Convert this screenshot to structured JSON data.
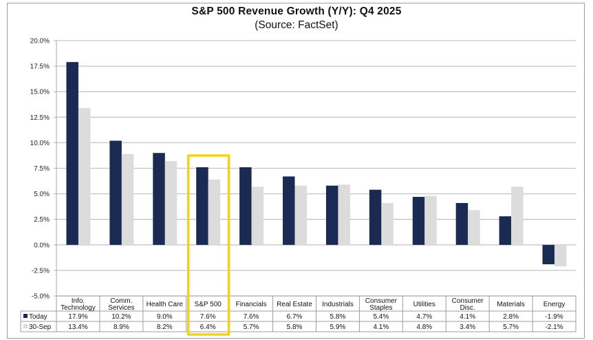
{
  "chart_data": {
    "type": "bar",
    "title": "S&P 500 Revenue Growth (Y/Y):  Q4 2025",
    "subtitle": "(Source: FactSet)",
    "xlabel": "",
    "ylabel": "",
    "ylim": [
      -5.0,
      20.0
    ],
    "yticks": [
      20.0,
      17.5,
      15.0,
      12.5,
      10.0,
      7.5,
      5.0,
      2.5,
      0.0,
      -2.5,
      -5.0
    ],
    "ytick_labels": [
      "20.0%",
      "17.5%",
      "15.0%",
      "12.5%",
      "10.0%",
      "7.5%",
      "5.0%",
      "2.5%",
      "0.0%",
      "-2.5%",
      "-5.0%"
    ],
    "grid": true,
    "categories": [
      [
        "Info.",
        "Technology"
      ],
      [
        "Comm.",
        "Services"
      ],
      [
        "Health Care"
      ],
      [
        "S&P 500"
      ],
      [
        "Financials"
      ],
      [
        "Real Estate"
      ],
      [
        "Industrials"
      ],
      [
        "Consumer",
        "Staples"
      ],
      [
        "Utilities"
      ],
      [
        "Consumer",
        "Disc."
      ],
      [
        "Materials"
      ],
      [
        "Energy"
      ]
    ],
    "series": [
      {
        "name": "Today",
        "color": "#1b2a52",
        "values": [
          17.9,
          10.2,
          9.0,
          7.6,
          7.6,
          6.7,
          5.8,
          5.4,
          4.7,
          4.1,
          2.8,
          -1.9
        ],
        "labels": [
          "17.9%",
          "10.2%",
          "9.0%",
          "7.6%",
          "7.6%",
          "6.7%",
          "5.8%",
          "5.4%",
          "4.7%",
          "4.1%",
          "2.8%",
          "-1.9%"
        ]
      },
      {
        "name": "30-Sep",
        "color": "#dcdcdc",
        "values": [
          13.4,
          8.9,
          8.2,
          6.4,
          5.7,
          5.8,
          5.9,
          4.1,
          4.8,
          3.4,
          5.7,
          -2.1
        ],
        "labels": [
          "13.4%",
          "8.9%",
          "8.2%",
          "6.4%",
          "5.7%",
          "5.8%",
          "5.9%",
          "4.1%",
          "4.8%",
          "3.4%",
          "5.7%",
          "-2.1%"
        ]
      }
    ],
    "legend": "data-table-left",
    "highlight": {
      "category_index": 3,
      "color": "#f5d018"
    }
  }
}
